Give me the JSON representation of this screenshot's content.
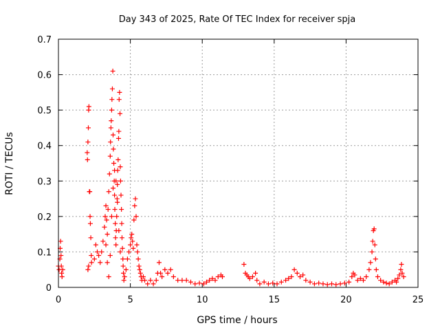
{
  "chart_data": {
    "type": "scatter",
    "title": "Day 343 of 2025, Rate Of TEC Index for receiver spja",
    "xlabel": "GPS time / hours",
    "ylabel": "ROTI / TECUs",
    "xlim": [
      0,
      25
    ],
    "ylim": [
      0,
      0.7
    ],
    "xticks": [
      "0",
      "5",
      "10",
      "15",
      "20",
      "25"
    ],
    "yticks": [
      "0",
      "0.1",
      "0.2",
      "0.3",
      "0.4",
      "0.5",
      "0.6",
      "0.7"
    ],
    "grid": true,
    "marker": "plus",
    "color": "#ff0000",
    "series": [
      {
        "points": [
          [
            0.0,
            0.06
          ],
          [
            0.05,
            0.05
          ],
          [
            0.1,
            0.08
          ],
          [
            0.12,
            0.11
          ],
          [
            0.15,
            0.13
          ],
          [
            0.18,
            0.09
          ],
          [
            0.2,
            0.06
          ],
          [
            0.22,
            0.04
          ],
          [
            0.25,
            0.03
          ],
          [
            0.3,
            0.05
          ],
          [
            2.0,
            0.38
          ],
          [
            2.02,
            0.36
          ],
          [
            2.05,
            0.41
          ],
          [
            2.08,
            0.45
          ],
          [
            2.1,
            0.5
          ],
          [
            2.12,
            0.51
          ],
          [
            2.15,
            0.27
          ],
          [
            2.18,
            0.27
          ],
          [
            2.2,
            0.2
          ],
          [
            2.22,
            0.18
          ],
          [
            2.25,
            0.14
          ],
          [
            2.28,
            0.09
          ],
          [
            2.3,
            0.07
          ],
          [
            2.05,
            0.05
          ],
          [
            2.1,
            0.06
          ],
          [
            2.5,
            0.08
          ],
          [
            2.6,
            0.12
          ],
          [
            2.7,
            0.1
          ],
          [
            2.8,
            0.09
          ],
          [
            2.9,
            0.07
          ],
          [
            3.0,
            0.1
          ],
          [
            3.1,
            0.13
          ],
          [
            3.2,
            0.17
          ],
          [
            3.25,
            0.2
          ],
          [
            3.3,
            0.23
          ],
          [
            3.35,
            0.19
          ],
          [
            3.4,
            0.15
          ],
          [
            3.45,
            0.22
          ],
          [
            3.5,
            0.27
          ],
          [
            3.55,
            0.32
          ],
          [
            3.6,
            0.37
          ],
          [
            3.62,
            0.41
          ],
          [
            3.65,
            0.45
          ],
          [
            3.67,
            0.47
          ],
          [
            3.7,
            0.5
          ],
          [
            3.72,
            0.53
          ],
          [
            3.75,
            0.56
          ],
          [
            3.78,
            0.61
          ],
          [
            3.8,
            0.43
          ],
          [
            3.82,
            0.39
          ],
          [
            3.85,
            0.35
          ],
          [
            3.88,
            0.3
          ],
          [
            3.9,
            0.26
          ],
          [
            3.92,
            0.22
          ],
          [
            3.95,
            0.18
          ],
          [
            3.97,
            0.14
          ],
          [
            4.0,
            0.12
          ],
          [
            4.02,
            0.16
          ],
          [
            4.05,
            0.2
          ],
          [
            4.08,
            0.25
          ],
          [
            4.1,
            0.29
          ],
          [
            4.12,
            0.33
          ],
          [
            4.15,
            0.36
          ],
          [
            4.18,
            0.42
          ],
          [
            4.2,
            0.44
          ],
          [
            4.22,
            0.53
          ],
          [
            4.25,
            0.55
          ],
          [
            4.28,
            0.49
          ],
          [
            4.3,
            0.34
          ],
          [
            4.32,
            0.3
          ],
          [
            4.35,
            0.26
          ],
          [
            4.38,
            0.22
          ],
          [
            4.4,
            0.18
          ],
          [
            4.42,
            0.14
          ],
          [
            4.45,
            0.11
          ],
          [
            4.48,
            0.08
          ],
          [
            4.5,
            0.06
          ],
          [
            4.52,
            0.04
          ],
          [
            4.55,
            0.02
          ],
          [
            3.4,
            0.07
          ],
          [
            3.5,
            0.03
          ],
          [
            3.6,
            0.09
          ],
          [
            3.3,
            0.12
          ],
          [
            3.7,
            0.2
          ],
          [
            3.8,
            0.28
          ],
          [
            3.9,
            0.33
          ],
          [
            4.0,
            0.3
          ],
          [
            4.1,
            0.24
          ],
          [
            4.2,
            0.16
          ],
          [
            4.3,
            0.1
          ],
          [
            4.6,
            0.03
          ],
          [
            4.7,
            0.05
          ],
          [
            4.8,
            0.08
          ],
          [
            4.9,
            0.1
          ],
          [
            5.0,
            0.12
          ],
          [
            5.05,
            0.14
          ],
          [
            5.1,
            0.15
          ],
          [
            5.15,
            0.13
          ],
          [
            5.2,
            0.11
          ],
          [
            5.25,
            0.19
          ],
          [
            5.3,
            0.23
          ],
          [
            5.35,
            0.25
          ],
          [
            5.4,
            0.2
          ],
          [
            5.45,
            0.12
          ],
          [
            5.5,
            0.1
          ],
          [
            5.55,
            0.08
          ],
          [
            5.6,
            0.06
          ],
          [
            5.65,
            0.05
          ],
          [
            5.7,
            0.04
          ],
          [
            5.75,
            0.03
          ],
          [
            5.8,
            0.02
          ],
          [
            5.9,
            0.03
          ],
          [
            6.0,
            0.02
          ],
          [
            6.2,
            0.01
          ],
          [
            6.4,
            0.02
          ],
          [
            6.6,
            0.01
          ],
          [
            6.8,
            0.02
          ],
          [
            6.9,
            0.04
          ],
          [
            7.0,
            0.07
          ],
          [
            7.1,
            0.04
          ],
          [
            7.2,
            0.03
          ],
          [
            7.4,
            0.05
          ],
          [
            7.6,
            0.04
          ],
          [
            7.8,
            0.05
          ],
          [
            8.0,
            0.03
          ],
          [
            8.3,
            0.02
          ],
          [
            8.6,
            0.02
          ],
          [
            8.9,
            0.02
          ],
          [
            9.2,
            0.015
          ],
          [
            9.5,
            0.01
          ],
          [
            9.8,
            0.012
          ],
          [
            10.1,
            0.01
          ],
          [
            10.3,
            0.015
          ],
          [
            10.5,
            0.02
          ],
          [
            10.7,
            0.025
          ],
          [
            10.9,
            0.02
          ],
          [
            11.1,
            0.03
          ],
          [
            11.3,
            0.035
          ],
          [
            11.4,
            0.03
          ],
          [
            12.9,
            0.065
          ],
          [
            13.0,
            0.04
          ],
          [
            13.1,
            0.035
          ],
          [
            13.2,
            0.03
          ],
          [
            13.3,
            0.025
          ],
          [
            13.5,
            0.03
          ],
          [
            13.7,
            0.04
          ],
          [
            13.8,
            0.02
          ],
          [
            14.0,
            0.01
          ],
          [
            14.3,
            0.015
          ],
          [
            14.6,
            0.01
          ],
          [
            14.9,
            0.012
          ],
          [
            15.2,
            0.01
          ],
          [
            15.5,
            0.015
          ],
          [
            15.8,
            0.02
          ],
          [
            16.0,
            0.025
          ],
          [
            16.2,
            0.03
          ],
          [
            16.4,
            0.05
          ],
          [
            16.6,
            0.04
          ],
          [
            16.8,
            0.03
          ],
          [
            17.0,
            0.035
          ],
          [
            17.2,
            0.02
          ],
          [
            17.5,
            0.015
          ],
          [
            17.8,
            0.01
          ],
          [
            18.1,
            0.012
          ],
          [
            18.4,
            0.01
          ],
          [
            18.7,
            0.008
          ],
          [
            19.0,
            0.01
          ],
          [
            19.3,
            0.008
          ],
          [
            19.6,
            0.01
          ],
          [
            19.9,
            0.012
          ],
          [
            20.2,
            0.015
          ],
          [
            20.4,
            0.03
          ],
          [
            20.5,
            0.04
          ],
          [
            20.6,
            0.035
          ],
          [
            20.8,
            0.02
          ],
          [
            21.0,
            0.025
          ],
          [
            21.2,
            0.02
          ],
          [
            21.4,
            0.03
          ],
          [
            21.6,
            0.05
          ],
          [
            21.7,
            0.07
          ],
          [
            21.8,
            0.1
          ],
          [
            21.85,
            0.13
          ],
          [
            21.9,
            0.16
          ],
          [
            21.95,
            0.165
          ],
          [
            22.0,
            0.12
          ],
          [
            22.05,
            0.08
          ],
          [
            22.1,
            0.05
          ],
          [
            22.2,
            0.03
          ],
          [
            22.4,
            0.02
          ],
          [
            22.6,
            0.015
          ],
          [
            22.8,
            0.012
          ],
          [
            23.0,
            0.01
          ],
          [
            23.2,
            0.015
          ],
          [
            23.4,
            0.02
          ],
          [
            23.5,
            0.015
          ],
          [
            23.6,
            0.025
          ],
          [
            23.7,
            0.035
          ],
          [
            23.8,
            0.05
          ],
          [
            23.85,
            0.065
          ],
          [
            23.9,
            0.04
          ],
          [
            24.0,
            0.03
          ]
        ]
      }
    ]
  }
}
